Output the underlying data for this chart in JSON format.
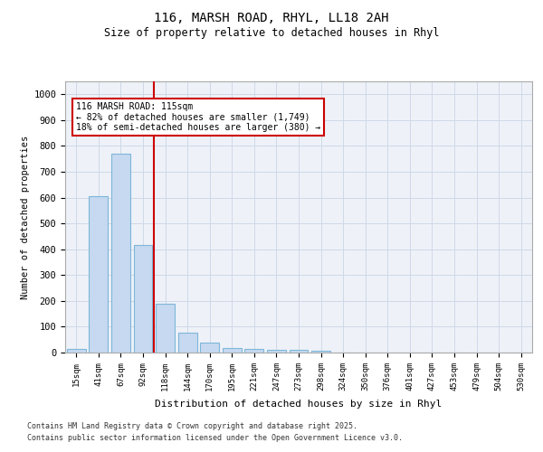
{
  "title1": "116, MARSH ROAD, RHYL, LL18 2AH",
  "title2": "Size of property relative to detached houses in Rhyl",
  "xlabel": "Distribution of detached houses by size in Rhyl",
  "ylabel": "Number of detached properties",
  "categories": [
    "15sqm",
    "41sqm",
    "67sqm",
    "92sqm",
    "118sqm",
    "144sqm",
    "170sqm",
    "195sqm",
    "221sqm",
    "247sqm",
    "273sqm",
    "298sqm",
    "324sqm",
    "350sqm",
    "376sqm",
    "401sqm",
    "427sqm",
    "453sqm",
    "479sqm",
    "504sqm",
    "530sqm"
  ],
  "values": [
    15,
    605,
    770,
    415,
    190,
    78,
    37,
    18,
    15,
    12,
    10,
    7,
    0,
    0,
    0,
    0,
    0,
    0,
    0,
    0,
    0
  ],
  "bar_color": "#c6d9f0",
  "bar_edge_color": "#7eb6d9",
  "grid_color": "#d0d8e8",
  "background_color": "#eef2f8",
  "vline_color": "#cc0000",
  "annotation_text": "116 MARSH ROAD: 115sqm\n← 82% of detached houses are smaller (1,749)\n18% of semi-detached houses are larger (380) →",
  "annotation_box_color": "#cc0000",
  "ylim": [
    0,
    1050
  ],
  "yticks": [
    0,
    100,
    200,
    300,
    400,
    500,
    600,
    700,
    800,
    900,
    1000
  ],
  "footer1": "Contains HM Land Registry data © Crown copyright and database right 2025.",
  "footer2": "Contains public sector information licensed under the Open Government Licence v3.0."
}
